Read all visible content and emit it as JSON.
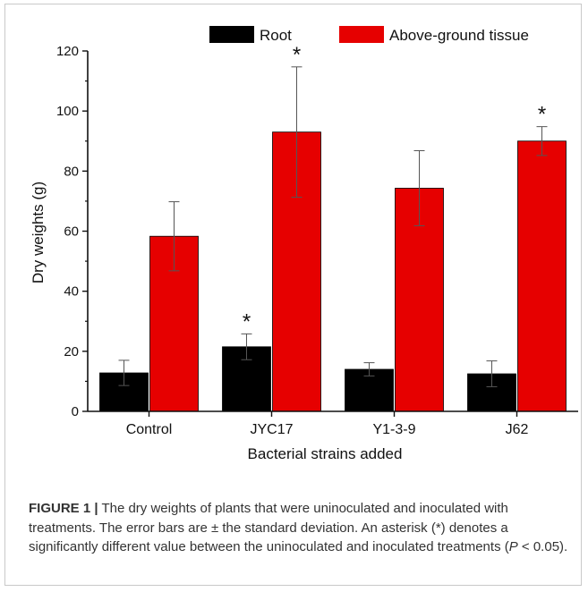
{
  "chart_data": {
    "type": "bar",
    "title": "",
    "xlabel": "Bacterial strains added",
    "ylabel": "Dry weights (g)",
    "ylim": [
      0,
      120
    ],
    "yticks": [
      0,
      20,
      40,
      60,
      80,
      100,
      120
    ],
    "categories": [
      "Control",
      "JYC17",
      "Y1-3-9",
      "J62"
    ],
    "legend_position": "top",
    "grid": false,
    "series": [
      {
        "name": "Root",
        "color": "#000000",
        "values": [
          12.8,
          21.5,
          14.0,
          12.5
        ],
        "errors": [
          4.2,
          4.3,
          2.2,
          4.3
        ],
        "significance": [
          "",
          "*",
          "",
          ""
        ]
      },
      {
        "name": "Above-ground tissue",
        "color": "#e60000",
        "values": [
          58.3,
          93.0,
          74.3,
          90.0
        ],
        "errors": [
          11.5,
          21.7,
          12.5,
          4.8
        ],
        "significance": [
          "",
          "*",
          "",
          "*"
        ]
      }
    ]
  },
  "caption": {
    "label": "FIGURE 1 |",
    "text": " The dry weights of plants that were uninoculated and inoculated with treatments. The error bars are ± the standard deviation. An asterisk (*) denotes a significantly different value between the uninoculated and inoculated treatments (",
    "p_symbol": "P",
    "p_rest": " < 0.05)."
  }
}
